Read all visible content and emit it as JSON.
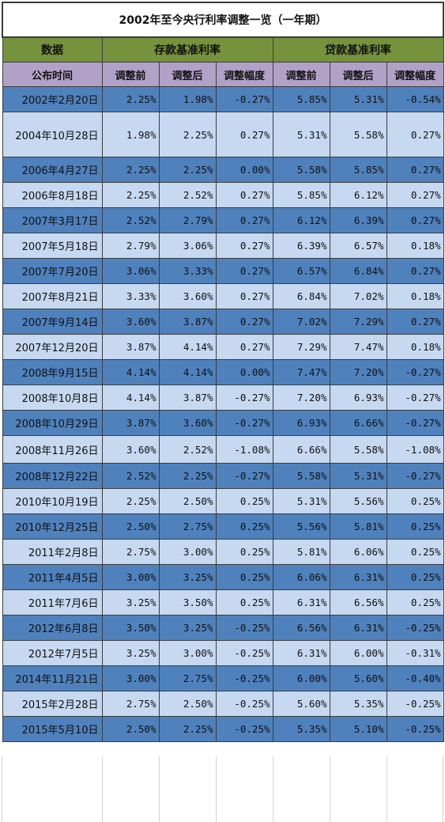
{
  "title": "2002年至今央行利率调整一览（一年期）",
  "group_headers": {
    "data": "数据",
    "deposit": "存款基准利率",
    "loan": "贷款基准利率"
  },
  "sub_headers": {
    "date": "公布时间",
    "before": "调整前",
    "after": "调整后",
    "change": "调整幅度"
  },
  "colors": {
    "group_header_bg": "#76923c",
    "sub_header_bg": "#b2a1c7",
    "row_dark": "#4f81bd",
    "row_light": "#c6d9f1"
  },
  "rows": [
    {
      "date": "2002年2月20日",
      "dep_before": "2.25%",
      "dep_after": "1.98%",
      "dep_change": "-0.27%",
      "loan_before": "5.85%",
      "loan_after": "5.31%",
      "loan_change": "-0.54%"
    },
    {
      "date": "2004年10月28日",
      "dep_before": "1.98%",
      "dep_after": "2.25%",
      "dep_change": "0.27%",
      "loan_before": "5.31%",
      "loan_after": "5.58%",
      "loan_change": "0.27%"
    },
    {
      "date": "2006年4月27日",
      "dep_before": "2.25%",
      "dep_after": "2.25%",
      "dep_change": "0.00%",
      "loan_before": "5.58%",
      "loan_after": "5.85%",
      "loan_change": "0.27%"
    },
    {
      "date": "2006年8月18日",
      "dep_before": "2.25%",
      "dep_after": "2.52%",
      "dep_change": "0.27%",
      "loan_before": "5.85%",
      "loan_after": "6.12%",
      "loan_change": "0.27%"
    },
    {
      "date": "2007年3月17日",
      "dep_before": "2.52%",
      "dep_after": "2.79%",
      "dep_change": "0.27%",
      "loan_before": "6.12%",
      "loan_after": "6.39%",
      "loan_change": "0.27%"
    },
    {
      "date": "2007年5月18日",
      "dep_before": "2.79%",
      "dep_after": "3.06%",
      "dep_change": "0.27%",
      "loan_before": "6.39%",
      "loan_after": "6.57%",
      "loan_change": "0.18%"
    },
    {
      "date": "2007年7月20日",
      "dep_before": "3.06%",
      "dep_after": "3.33%",
      "dep_change": "0.27%",
      "loan_before": "6.57%",
      "loan_after": "6.84%",
      "loan_change": "0.27%"
    },
    {
      "date": "2007年8月21日",
      "dep_before": "3.33%",
      "dep_after": "3.60%",
      "dep_change": "0.27%",
      "loan_before": "6.84%",
      "loan_after": "7.02%",
      "loan_change": "0.18%"
    },
    {
      "date": "2007年9月14日",
      "dep_before": "3.60%",
      "dep_after": "3.87%",
      "dep_change": "0.27%",
      "loan_before": "7.02%",
      "loan_after": "7.29%",
      "loan_change": "0.27%"
    },
    {
      "date": "2007年12月20日",
      "dep_before": "3.87%",
      "dep_after": "4.14%",
      "dep_change": "0.27%",
      "loan_before": "7.29%",
      "loan_after": "7.47%",
      "loan_change": "0.18%"
    },
    {
      "date": "2008年9月15日",
      "dep_before": "4.14%",
      "dep_after": "4.14%",
      "dep_change": "0.00%",
      "loan_before": "7.47%",
      "loan_after": "7.20%",
      "loan_change": "-0.27%"
    },
    {
      "date": "2008年10月8日",
      "dep_before": "4.14%",
      "dep_after": "3.87%",
      "dep_change": "-0.27%",
      "loan_before": "7.20%",
      "loan_after": "6.93%",
      "loan_change": "-0.27%"
    },
    {
      "date": "2008年10月29日",
      "dep_before": "3.87%",
      "dep_after": "3.60%",
      "dep_change": "-0.27%",
      "loan_before": "6.93%",
      "loan_after": "6.66%",
      "loan_change": "-0.27%"
    },
    {
      "date": "2008年11月26日",
      "dep_before": "3.60%",
      "dep_after": "2.52%",
      "dep_change": "-1.08%",
      "loan_before": "6.66%",
      "loan_after": "5.58%",
      "loan_change": "-1.08%"
    },
    {
      "date": "2008年12月22日",
      "dep_before": "2.52%",
      "dep_after": "2.25%",
      "dep_change": "-0.27%",
      "loan_before": "5.58%",
      "loan_after": "5.31%",
      "loan_change": "-0.27%"
    },
    {
      "date": "2010年10月19日",
      "dep_before": "2.25%",
      "dep_after": "2.50%",
      "dep_change": "0.25%",
      "loan_before": "5.31%",
      "loan_after": "5.56%",
      "loan_change": "0.25%"
    },
    {
      "date": "2010年12月25日",
      "dep_before": "2.50%",
      "dep_after": "2.75%",
      "dep_change": "0.25%",
      "loan_before": "5.56%",
      "loan_after": "5.81%",
      "loan_change": "0.25%"
    },
    {
      "date": "2011年2月8日",
      "dep_before": "2.75%",
      "dep_after": "3.00%",
      "dep_change": "0.25%",
      "loan_before": "5.81%",
      "loan_after": "6.06%",
      "loan_change": "0.25%"
    },
    {
      "date": "2011年4月5日",
      "dep_before": "3.00%",
      "dep_after": "3.25%",
      "dep_change": "0.25%",
      "loan_before": "6.06%",
      "loan_after": "6.31%",
      "loan_change": "0.25%"
    },
    {
      "date": "2011年7月6日",
      "dep_before": "3.25%",
      "dep_after": "3.50%",
      "dep_change": "0.25%",
      "loan_before": "6.31%",
      "loan_after": "6.56%",
      "loan_change": "0.25%"
    },
    {
      "date": "2012年6月8日",
      "dep_before": "3.50%",
      "dep_after": "3.25%",
      "dep_change": "-0.25%",
      "loan_before": "6.56%",
      "loan_after": "6.31%",
      "loan_change": "-0.25%"
    },
    {
      "date": "2012年7月5日",
      "dep_before": "3.25%",
      "dep_after": "3.00%",
      "dep_change": "-0.25%",
      "loan_before": "6.31%",
      "loan_after": "6.00%",
      "loan_change": "-0.31%"
    },
    {
      "date": "2014年11月21日",
      "dep_before": "3.00%",
      "dep_after": "2.75%",
      "dep_change": "-0.25%",
      "loan_before": "6.00%",
      "loan_after": "5.60%",
      "loan_change": "-0.40%"
    },
    {
      "date": "2015年2月28日",
      "dep_before": "2.75%",
      "dep_after": "2.50%",
      "dep_change": "-0.25%",
      "loan_before": "5.60%",
      "loan_after": "5.35%",
      "loan_change": "-0.25%"
    },
    {
      "date": "2015年5月10日",
      "dep_before": "2.50%",
      "dep_after": "2.25%",
      "dep_change": "-0.25%",
      "loan_before": "5.35%",
      "loan_after": "5.10%",
      "loan_change": "-0.25%"
    }
  ]
}
